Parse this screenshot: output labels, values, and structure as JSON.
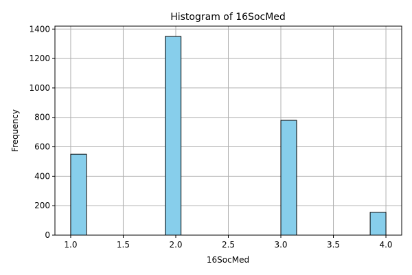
{
  "chart_data": {
    "type": "bar",
    "title": "Histogram of 16SocMed",
    "xlabel": "16SocMed",
    "ylabel": "Frequency",
    "xlim": [
      0.85,
      4.15
    ],
    "ylim": [
      0,
      1420
    ],
    "xticks": [
      1.0,
      1.5,
      2.0,
      2.5,
      3.0,
      3.5,
      4.0
    ],
    "xtick_labels": [
      "1.0",
      "1.5",
      "2.0",
      "2.5",
      "3.0",
      "3.5",
      "4.0"
    ],
    "yticks": [
      0,
      200,
      400,
      600,
      800,
      1000,
      1200,
      1400
    ],
    "ytick_labels": [
      "0",
      "200",
      "400",
      "600",
      "800",
      "1000",
      "1200",
      "1400"
    ],
    "bins": [
      {
        "x0": 1.0,
        "x1": 1.15,
        "count": 550
      },
      {
        "x0": 1.9,
        "x1": 2.05,
        "count": 1350
      },
      {
        "x0": 3.0,
        "x1": 3.15,
        "count": 780
      },
      {
        "x0": 3.85,
        "x1": 4.0,
        "count": 155
      }
    ],
    "grid": true,
    "bar_color": "#87ceeb",
    "edge_color": "#000000",
    "grid_color": "#b0b0b0"
  }
}
